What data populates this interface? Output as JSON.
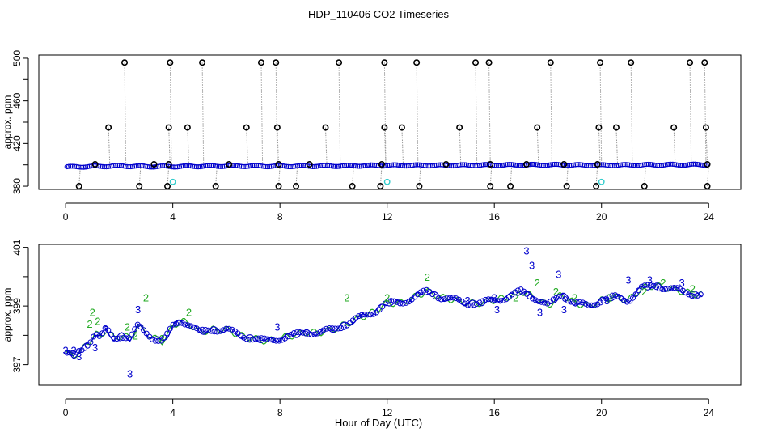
{
  "figure": {
    "title": "HDP_110406  CO2 Timeseries",
    "xlabel": "Hour of Day (UTC)"
  },
  "colors": {
    "raw": "#000000",
    "spike_line": "#999999",
    "base": "#0000cc",
    "flag_cyan": "#33cccc",
    "series2": "#22aa22",
    "series3": "#0000cc"
  },
  "chart_data": [
    {
      "type": "scatter",
      "panel": "top",
      "title": "",
      "xlabel": "",
      "ylabel": "approx. ppm",
      "xlim": [
        -1,
        25.2
      ],
      "ylim": [
        377,
        503
      ],
      "x_ticks": [
        0,
        4,
        8,
        12,
        16,
        20,
        24
      ],
      "x_tick_labels": [
        "0",
        "4",
        "8",
        "12",
        "16",
        "20",
        "24"
      ],
      "y_ticks": [
        380,
        420,
        460,
        500
      ],
      "y_tick_labels": [
        "380",
        "420",
        "460",
        "500"
      ],
      "y_minor_ticks": [
        400,
        440,
        480
      ],
      "grid": false,
      "baseline": [
        [
          0,
          398
        ],
        [
          1,
          398.5
        ],
        [
          2,
          399
        ],
        [
          3,
          398.5
        ],
        [
          4,
          398.5
        ],
        [
          6,
          399
        ],
        [
          8,
          398.8
        ],
        [
          10,
          399
        ],
        [
          12,
          399.5
        ],
        [
          14,
          399.5
        ],
        [
          16,
          399.8
        ],
        [
          18,
          400
        ],
        [
          20,
          399.6
        ],
        [
          22,
          400
        ],
        [
          24,
          400.2
        ]
      ],
      "high_spikes": [
        [
          2.2,
          496
        ],
        [
          3.9,
          496
        ],
        [
          5.1,
          496
        ],
        [
          7.3,
          496
        ],
        [
          7.85,
          496
        ],
        [
          10.2,
          496
        ],
        [
          11.9,
          496
        ],
        [
          13.1,
          496
        ],
        [
          15.3,
          496
        ],
        [
          15.8,
          496
        ],
        [
          18.1,
          496
        ],
        [
          19.95,
          496
        ],
        [
          21.1,
          496
        ],
        [
          23.3,
          496
        ],
        [
          23.85,
          496
        ]
      ],
      "mid_spikes": [
        [
          1.6,
          435
        ],
        [
          3.85,
          435
        ],
        [
          4.55,
          435
        ],
        [
          6.75,
          435
        ],
        [
          7.9,
          435
        ],
        [
          9.7,
          435
        ],
        [
          11.9,
          435
        ],
        [
          12.55,
          435
        ],
        [
          14.7,
          435
        ],
        [
          17.6,
          435
        ],
        [
          19.9,
          435
        ],
        [
          20.55,
          435
        ],
        [
          22.7,
          435
        ],
        [
          23.9,
          435
        ]
      ],
      "low_spikes": [
        [
          0.5,
          380
        ],
        [
          2.75,
          380
        ],
        [
          3.8,
          380
        ],
        [
          5.6,
          380
        ],
        [
          7.95,
          380
        ],
        [
          8.6,
          380
        ],
        [
          10.7,
          380
        ],
        [
          11.75,
          380
        ],
        [
          13.2,
          380
        ],
        [
          15.85,
          380
        ],
        [
          16.6,
          380
        ],
        [
          18.7,
          380
        ],
        [
          19.8,
          380
        ],
        [
          21.6,
          380
        ],
        [
          23.95,
          380
        ]
      ],
      "flat_points": [
        [
          1.1,
          400.5
        ],
        [
          3.3,
          400.5
        ],
        [
          3.85,
          400.5
        ],
        [
          6.1,
          400.5
        ],
        [
          7.95,
          400.5
        ],
        [
          9.1,
          400.5
        ],
        [
          11.8,
          400.5
        ],
        [
          14.2,
          400.5
        ],
        [
          15.85,
          400.5
        ],
        [
          17.2,
          400.5
        ],
        [
          18.6,
          400.5
        ],
        [
          19.85,
          400.5
        ],
        [
          23.95,
          400.5
        ]
      ],
      "cyan_points": [
        [
          4.0,
          384
        ],
        [
          12.0,
          384
        ],
        [
          20.0,
          384
        ]
      ]
    },
    {
      "type": "line",
      "panel": "bottom",
      "title": "",
      "xlabel": "Hour of Day (UTC)",
      "ylabel": "approx. ppm",
      "xlim": [
        -1,
        25.2
      ],
      "ylim": [
        396.3,
        401.1
      ],
      "x_ticks": [
        0,
        4,
        8,
        12,
        16,
        20,
        24
      ],
      "x_tick_labels": [
        "0",
        "4",
        "8",
        "12",
        "16",
        "20",
        "24"
      ],
      "y_ticks": [
        397,
        399,
        401
      ],
      "y_tick_labels": [
        "397",
        "399",
        "401"
      ],
      "y_minor_ticks": [
        398,
        400
      ],
      "grid": false,
      "trend": [
        [
          0,
          397.4
        ],
        [
          0.3,
          397.3
        ],
        [
          0.6,
          397.5
        ],
        [
          0.9,
          397.8
        ],
        [
          1.1,
          398.1
        ],
        [
          1.3,
          397.9
        ],
        [
          1.5,
          398.2
        ],
        [
          1.8,
          397.9
        ],
        [
          2.1,
          398.0
        ],
        [
          2.4,
          397.9
        ],
        [
          2.7,
          398.3
        ],
        [
          3.0,
          398.1
        ],
        [
          3.3,
          397.9
        ],
        [
          3.6,
          397.8
        ],
        [
          3.8,
          398.0
        ],
        [
          4.0,
          398.3
        ],
        [
          4.3,
          398.5
        ],
        [
          4.6,
          398.4
        ],
        [
          5.0,
          398.1
        ],
        [
          5.5,
          398.2
        ],
        [
          6.0,
          398.2
        ],
        [
          6.5,
          398.0
        ],
        [
          7.0,
          397.9
        ],
        [
          7.5,
          397.8
        ],
        [
          8.0,
          397.9
        ],
        [
          8.5,
          398.0
        ],
        [
          9.0,
          398.1
        ],
        [
          9.5,
          398.1
        ],
        [
          10.0,
          398.2
        ],
        [
          10.5,
          398.4
        ],
        [
          11.0,
          398.6
        ],
        [
          11.5,
          398.8
        ],
        [
          12.0,
          399.1
        ],
        [
          12.5,
          399.1
        ],
        [
          13.0,
          399.3
        ],
        [
          13.5,
          399.5
        ],
        [
          14.0,
          399.3
        ],
        [
          14.5,
          399.2
        ],
        [
          15.0,
          399.1
        ],
        [
          15.5,
          399.1
        ],
        [
          16.0,
          399.2
        ],
        [
          16.5,
          399.3
        ],
        [
          17.0,
          399.5
        ],
        [
          17.5,
          399.3
        ],
        [
          18.0,
          399.0
        ],
        [
          18.5,
          399.4
        ],
        [
          19.0,
          399.1
        ],
        [
          19.5,
          399.0
        ],
        [
          20.0,
          399.2
        ],
        [
          20.5,
          399.3
        ],
        [
          21.0,
          399.2
        ],
        [
          21.5,
          399.6
        ],
        [
          22.0,
          399.7
        ],
        [
          22.5,
          399.6
        ],
        [
          23.0,
          399.5
        ],
        [
          23.5,
          399.4
        ],
        [
          23.8,
          399.4
        ]
      ],
      "series": [
        {
          "label": "2",
          "points": [
            [
              1.0,
              398.8
            ],
            [
              1.2,
              398.5
            ],
            [
              2.3,
              398.3
            ],
            [
              2.6,
              398.0
            ],
            [
              3.0,
              399.3
            ],
            [
              4.6,
              398.8
            ],
            [
              10.5,
              399.3
            ],
            [
              13.5,
              400.0
            ],
            [
              12.0,
              399.3
            ],
            [
              16.8,
              399.3
            ],
            [
              17.6,
              399.8
            ],
            [
              18.3,
              399.5
            ],
            [
              19.0,
              399.3
            ],
            [
              20.3,
              399.3
            ],
            [
              21.6,
              399.5
            ],
            [
              22.3,
              399.8
            ],
            [
              23.4,
              399.6
            ],
            [
              3.6,
              397.9
            ],
            [
              0.9,
              398.4
            ]
          ]
        },
        {
          "label": "3",
          "points": [
            [
              0.0,
              397.5
            ],
            [
              0.3,
              397.5
            ],
            [
              0.5,
              397.3
            ],
            [
              1.1,
              397.6
            ],
            [
              1.5,
              398.2
            ],
            [
              2.4,
              396.7
            ],
            [
              2.7,
              398.9
            ],
            [
              7.9,
              398.3
            ],
            [
              15.0,
              399.2
            ],
            [
              16.0,
              399.3
            ],
            [
              17.2,
              400.9
            ],
            [
              17.4,
              400.4
            ],
            [
              17.7,
              398.8
            ],
            [
              18.4,
              400.1
            ],
            [
              18.6,
              398.9
            ],
            [
              20.2,
              399.2
            ],
            [
              21.0,
              399.9
            ],
            [
              21.8,
              399.9
            ],
            [
              23.0,
              399.8
            ],
            [
              16.1,
              398.9
            ]
          ]
        }
      ]
    }
  ]
}
